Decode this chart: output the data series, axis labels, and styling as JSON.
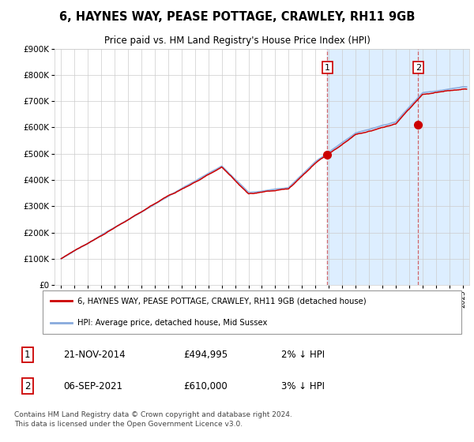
{
  "title": "6, HAYNES WAY, PEASE POTTAGE, CRAWLEY, RH11 9GB",
  "subtitle": "Price paid vs. HM Land Registry's House Price Index (HPI)",
  "ylim": [
    0,
    900000
  ],
  "ytick_vals": [
    0,
    100000,
    200000,
    300000,
    400000,
    500000,
    600000,
    700000,
    800000,
    900000
  ],
  "sale1": {
    "date_num": 2014.9,
    "price": 494995,
    "label": "1",
    "date_str": "21-NOV-2014",
    "price_str": "£494,995",
    "pct": "2% ↓ HPI"
  },
  "sale2": {
    "date_num": 2021.68,
    "price": 610000,
    "label": "2",
    "date_str": "06-SEP-2021",
    "price_str": "£610,000",
    "pct": "3% ↓ HPI"
  },
  "legend_line1": "6, HAYNES WAY, PEASE POTTAGE, CRAWLEY, RH11 9GB (detached house)",
  "legend_line2": "HPI: Average price, detached house, Mid Sussex",
  "footer": "Contains HM Land Registry data © Crown copyright and database right 2024.\nThis data is licensed under the Open Government Licence v3.0.",
  "line_color_red": "#cc0000",
  "line_color_blue": "#88aadd",
  "shading_color": "#ddeeff",
  "grid_color": "#cccccc",
  "background_plot": "#ffffff",
  "xlim_start": 1994.5,
  "xlim_end": 2025.5,
  "xticks": [
    1995,
    1996,
    1997,
    1998,
    1999,
    2000,
    2001,
    2002,
    2003,
    2004,
    2005,
    2006,
    2007,
    2008,
    2009,
    2010,
    2011,
    2012,
    2013,
    2014,
    2015,
    2016,
    2017,
    2018,
    2019,
    2020,
    2021,
    2022,
    2023,
    2024,
    2025
  ]
}
